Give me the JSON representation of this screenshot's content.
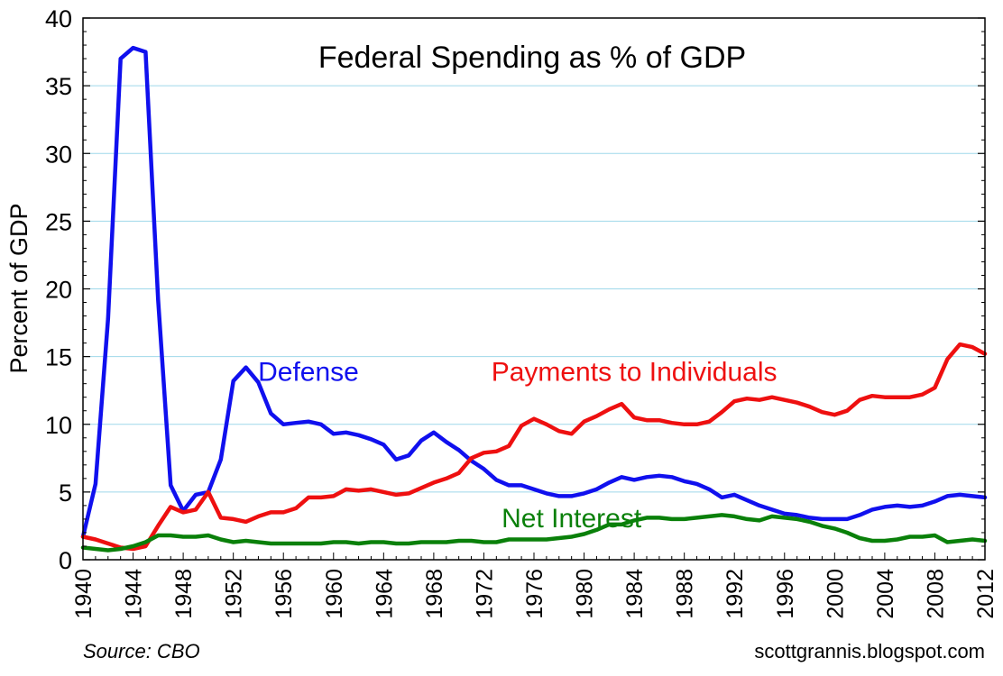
{
  "chart_data": {
    "type": "line",
    "title": "Federal Spending as % of GDP",
    "xlabel": "",
    "ylabel": "Percent of GDP",
    "xlim": [
      1940,
      2012
    ],
    "ylim": [
      0,
      40
    ],
    "yticks": [
      0,
      5,
      10,
      15,
      20,
      25,
      30,
      35,
      40
    ],
    "xticks": [
      1940,
      1944,
      1948,
      1952,
      1956,
      1960,
      1964,
      1968,
      1972,
      1976,
      1980,
      1984,
      1988,
      1992,
      1996,
      2000,
      2004,
      2008,
      2012
    ],
    "grid": true,
    "legend": "inline labels",
    "x": [
      1940,
      1941,
      1942,
      1943,
      1944,
      1945,
      1946,
      1947,
      1948,
      1949,
      1950,
      1951,
      1952,
      1953,
      1954,
      1955,
      1956,
      1957,
      1958,
      1959,
      1960,
      1961,
      1962,
      1963,
      1964,
      1965,
      1966,
      1967,
      1968,
      1969,
      1970,
      1971,
      1972,
      1973,
      1974,
      1975,
      1976,
      1977,
      1978,
      1979,
      1980,
      1981,
      1982,
      1983,
      1984,
      1985,
      1986,
      1987,
      1988,
      1989,
      1990,
      1991,
      1992,
      1993,
      1994,
      1995,
      1996,
      1997,
      1998,
      1999,
      2000,
      2001,
      2002,
      2003,
      2004,
      2005,
      2006,
      2007,
      2008,
      2009,
      2010,
      2011,
      2012
    ],
    "series": [
      {
        "name": "Defense",
        "color": "#1010ee",
        "values": [
          1.7,
          5.6,
          17.8,
          37.0,
          37.8,
          37.5,
          19.2,
          5.5,
          3.6,
          4.8,
          5.0,
          7.4,
          13.2,
          14.2,
          13.1,
          10.8,
          10.0,
          10.1,
          10.2,
          10.0,
          9.3,
          9.4,
          9.2,
          8.9,
          8.5,
          7.4,
          7.7,
          8.8,
          9.4,
          8.7,
          8.1,
          7.3,
          6.7,
          5.9,
          5.5,
          5.5,
          5.2,
          4.9,
          4.7,
          4.7,
          4.9,
          5.2,
          5.7,
          6.1,
          5.9,
          6.1,
          6.2,
          6.1,
          5.8,
          5.6,
          5.2,
          4.6,
          4.8,
          4.4,
          4.0,
          3.7,
          3.4,
          3.3,
          3.1,
          3.0,
          3.0,
          3.0,
          3.3,
          3.7,
          3.9,
          4.0,
          3.9,
          4.0,
          4.3,
          4.7,
          4.8,
          4.7,
          4.6
        ]
      },
      {
        "name": "Payments to Individuals",
        "color": "#ee1010",
        "values": [
          1.7,
          1.5,
          1.2,
          0.9,
          0.8,
          1.0,
          2.5,
          3.9,
          3.5,
          3.7,
          5.0,
          3.1,
          3.0,
          2.8,
          3.2,
          3.5,
          3.5,
          3.8,
          4.6,
          4.6,
          4.7,
          5.2,
          5.1,
          5.2,
          5.0,
          4.8,
          4.9,
          5.3,
          5.7,
          6.0,
          6.4,
          7.5,
          7.9,
          8.0,
          8.4,
          9.9,
          10.4,
          10.0,
          9.5,
          9.3,
          10.2,
          10.6,
          11.1,
          11.5,
          10.5,
          10.3,
          10.3,
          10.1,
          10.0,
          10.0,
          10.2,
          10.9,
          11.7,
          11.9,
          11.8,
          12.0,
          11.8,
          11.6,
          11.3,
          10.9,
          10.7,
          11.0,
          11.8,
          12.1,
          12.0,
          12.0,
          12.0,
          12.2,
          12.7,
          14.8,
          15.9,
          15.7,
          15.2
        ]
      },
      {
        "name": "Net Interest",
        "color": "#0a800a",
        "values": [
          0.9,
          0.8,
          0.7,
          0.8,
          1.0,
          1.3,
          1.8,
          1.8,
          1.7,
          1.7,
          1.8,
          1.5,
          1.3,
          1.4,
          1.3,
          1.2,
          1.2,
          1.2,
          1.2,
          1.2,
          1.3,
          1.3,
          1.2,
          1.3,
          1.3,
          1.2,
          1.2,
          1.3,
          1.3,
          1.3,
          1.4,
          1.4,
          1.3,
          1.3,
          1.5,
          1.5,
          1.5,
          1.5,
          1.6,
          1.7,
          1.9,
          2.2,
          2.6,
          2.6,
          2.9,
          3.1,
          3.1,
          3.0,
          3.0,
          3.1,
          3.2,
          3.3,
          3.2,
          3.0,
          2.9,
          3.2,
          3.1,
          3.0,
          2.8,
          2.5,
          2.3,
          2.0,
          1.6,
          1.4,
          1.4,
          1.5,
          1.7,
          1.7,
          1.8,
          1.3,
          1.4,
          1.5,
          1.4
        ]
      }
    ],
    "series_labels": [
      {
        "text": "Defense",
        "x": 1958,
        "y": 13.2
      },
      {
        "text": "Payments to Individuals",
        "x": 1984,
        "y": 13.2
      },
      {
        "text": "Net Interest",
        "x": 1979,
        "y": 2.4
      }
    ]
  },
  "footer": {
    "source": "Source: CBO",
    "credit": "scottgrannis.blogspot.com"
  }
}
